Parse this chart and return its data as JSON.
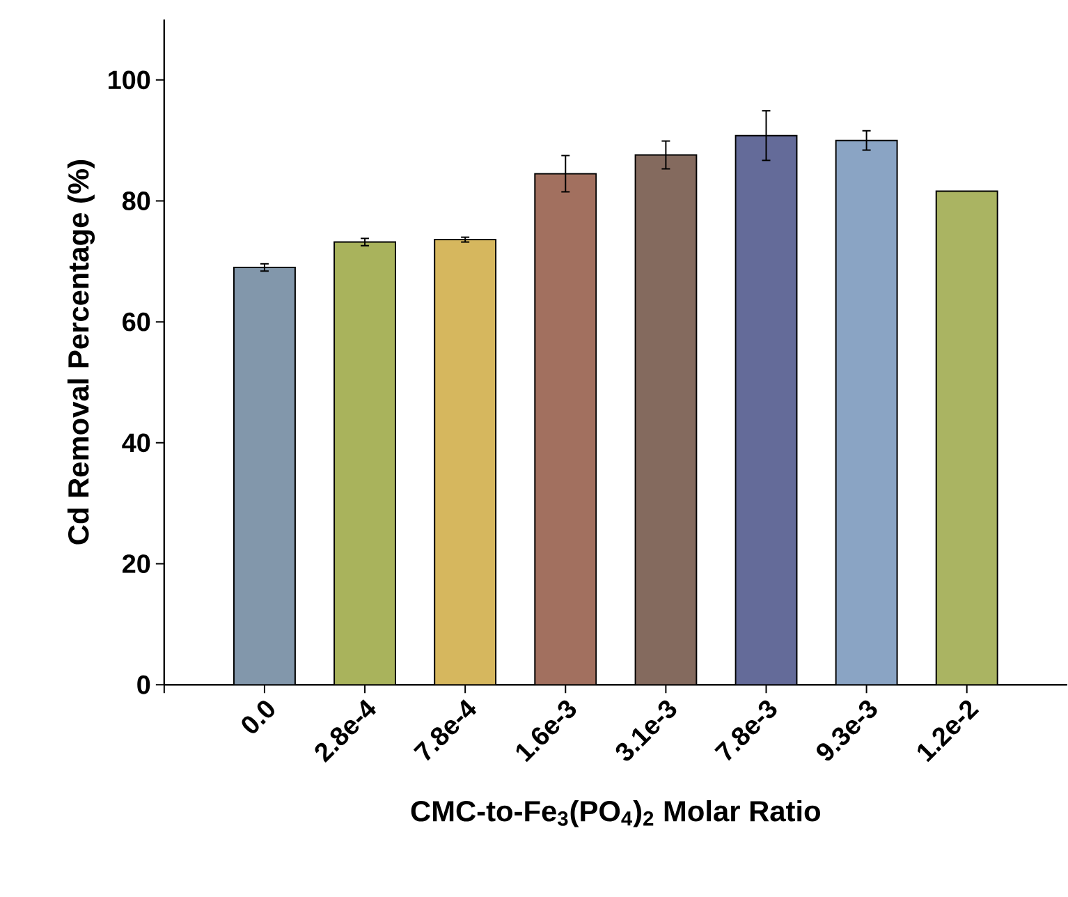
{
  "chart_data": {
    "type": "bar",
    "xlabel": "CMC-to-Fe$_{3}$(PO$_{4}$)$_{2}$ Molar Ratio",
    "ylabel": "Cd Removal Percentage  (%)",
    "categories": [
      "0.0",
      "2.8e-4",
      "7.8e-4",
      "1.6e-3",
      "3.1e-3",
      "7.8e-3",
      "9.3e-3",
      "1.2e-2"
    ],
    "values": [
      69.0,
      73.2,
      73.6,
      84.5,
      87.6,
      90.8,
      90.0,
      81.6
    ],
    "errors": [
      0.6,
      0.6,
      0.4,
      3.0,
      2.3,
      4.1,
      1.6,
      null
    ],
    "colors": [
      "#8297ab",
      "#a9b35c",
      "#d6b75e",
      "#a2705f",
      "#846a5e",
      "#646b99",
      "#8aa4c4",
      "#aab462"
    ],
    "ylim": [
      0,
      110
    ],
    "yticks": [
      0,
      20,
      40,
      60,
      80,
      100
    ]
  }
}
